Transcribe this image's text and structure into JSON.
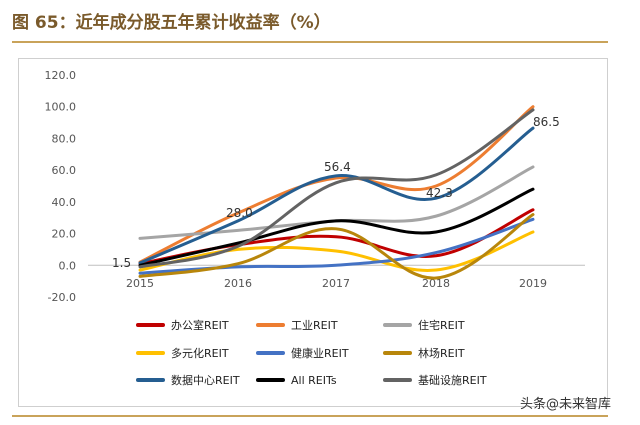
{
  "title": "图 65：近年成分股五年累计收益率（%）",
  "watermark": "头条@未来智库",
  "chart_data": {
    "type": "line",
    "title": "",
    "xlabel": "",
    "ylabel": "",
    "x": [
      "2015",
      "2016",
      "2017",
      "2018",
      "2019"
    ],
    "y_ticks": [
      "120.0",
      "100.0",
      "80.0",
      "60.0",
      "40.0",
      "20.0",
      "0.0",
      "-20.0"
    ],
    "ylim": [
      -20,
      120
    ],
    "grid": false,
    "legend_position": "bottom",
    "series": [
      {
        "name": "办公室REIT",
        "color": "#c00000",
        "values": [
          1,
          13,
          18,
          6,
          35
        ]
      },
      {
        "name": "工业REIT",
        "color": "#ed7d31",
        "values": [
          2,
          33,
          55,
          50,
          100
        ]
      },
      {
        "name": "住宅REIT",
        "color": "#a5a5a5",
        "values": [
          17,
          22,
          28,
          31,
          62
        ]
      },
      {
        "name": "多元化REIT",
        "color": "#ffc000",
        "values": [
          -3,
          10,
          9,
          -3,
          21
        ]
      },
      {
        "name": "健康业REIT",
        "color": "#4472c4",
        "values": [
          -5,
          -1,
          0,
          8,
          29
        ]
      },
      {
        "name": "林场REIT",
        "color": "#b8860b",
        "values": [
          -7,
          1,
          23,
          -8,
          32
        ]
      },
      {
        "name": "数据中心REIT",
        "color": "#255e91",
        "values": [
          1.5,
          28,
          56.4,
          42.3,
          86.5
        ]
      },
      {
        "name": "All REITs",
        "color": "#000000",
        "values": [
          0,
          14,
          28,
          21,
          48
        ]
      },
      {
        "name": "基础设施REIT",
        "color": "#636363",
        "values": [
          -1,
          12,
          52,
          57,
          98
        ]
      }
    ],
    "data_labels": [
      {
        "series": "数据中心REIT",
        "index": 0,
        "text": "1.5"
      },
      {
        "series": "数据中心REIT",
        "index": 1,
        "text": "28.0"
      },
      {
        "series": "数据中心REIT",
        "index": 2,
        "text": "56.4"
      },
      {
        "series": "数据中心REIT",
        "index": 3,
        "text": "42.3"
      },
      {
        "series": "数据中心REIT",
        "index": 4,
        "text": "86.5"
      }
    ]
  }
}
